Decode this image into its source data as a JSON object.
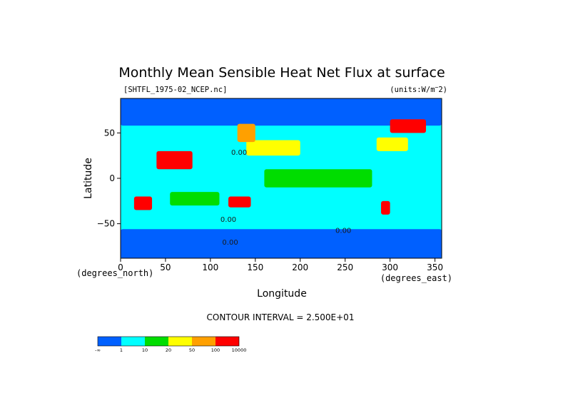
{
  "chart_data": {
    "type": "heatmap",
    "title": "Monthly Mean Sensible Heat Net Flux at surface",
    "source_label": "[SHTFL_1975-02_NCEP.nc]",
    "units_label": "(units:W/m^2)",
    "xlabel": "Longitude",
    "ylabel": "Latitude",
    "x_unit_label": "(degrees_east)",
    "y_unit_label": "(degrees_north)",
    "xlim": [
      0,
      357.5
    ],
    "ylim": [
      -88,
      88
    ],
    "x_ticks": [
      0,
      50,
      100,
      150,
      200,
      250,
      300,
      350
    ],
    "y_ticks": [
      -50,
      0,
      50
    ],
    "contour_interval_text": "CONTOUR INTERVAL = 2.500E+01",
    "contour_labels": [
      {
        "text": "0.00",
        "lon": 120,
        "lat": -48
      },
      {
        "text": "0.00",
        "lon": 122,
        "lat": -73
      },
      {
        "text": "0.00",
        "lon": 132,
        "lat": 26
      },
      {
        "text": "0.00",
        "lon": 248,
        "lat": -60
      }
    ],
    "colorbar": {
      "labels": [
        "-∞",
        "1",
        "10",
        "20",
        "50",
        "100",
        "10000"
      ],
      "colors": [
        "#0060ff",
        "#00ffff",
        "#00dd00",
        "#ffff00",
        "#ffa000",
        "#ff0000"
      ]
    },
    "regions": [
      {
        "name": "northern-ocean-high-lat",
        "lon": [
          0,
          357.5
        ],
        "lat": [
          58,
          88
        ],
        "class": 0
      },
      {
        "name": "southern-ocean",
        "lon": [
          0,
          357.5
        ],
        "lat": [
          -88,
          -56
        ],
        "class": 0
      },
      {
        "name": "tropical-ocean",
        "lon": [
          0,
          357.5
        ],
        "lat": [
          -50,
          35
        ],
        "class": 1
      },
      {
        "name": "equatorial-pacific",
        "lon": [
          160,
          280
        ],
        "lat": [
          -10,
          10
        ],
        "class": 2
      },
      {
        "name": "south-indian-ocean",
        "lon": [
          55,
          110
        ],
        "lat": [
          -30,
          -15
        ],
        "class": 2
      },
      {
        "name": "north-pacific-kuroshio",
        "lon": [
          140,
          200
        ],
        "lat": [
          25,
          42
        ],
        "class": 3
      },
      {
        "name": "gulf-stream",
        "lon": [
          285,
          320
        ],
        "lat": [
          30,
          45
        ],
        "class": 3
      },
      {
        "name": "east-asia-coast",
        "lon": [
          130,
          150
        ],
        "lat": [
          40,
          60
        ],
        "class": 4
      },
      {
        "name": "labrador-sea",
        "lon": [
          300,
          340
        ],
        "lat": [
          50,
          65
        ],
        "class": 5
      },
      {
        "name": "arabia-india",
        "lon": [
          40,
          80
        ],
        "lat": [
          10,
          30
        ],
        "class": 5
      },
      {
        "name": "australia-interior",
        "lon": [
          120,
          145
        ],
        "lat": [
          -32,
          -20
        ],
        "class": 5
      },
      {
        "name": "south-africa",
        "lon": [
          15,
          35
        ],
        "lat": [
          -35,
          -20
        ],
        "class": 5
      },
      {
        "name": "argentina",
        "lon": [
          290,
          300
        ],
        "lat": [
          -40,
          -25
        ],
        "class": 5
      }
    ]
  }
}
